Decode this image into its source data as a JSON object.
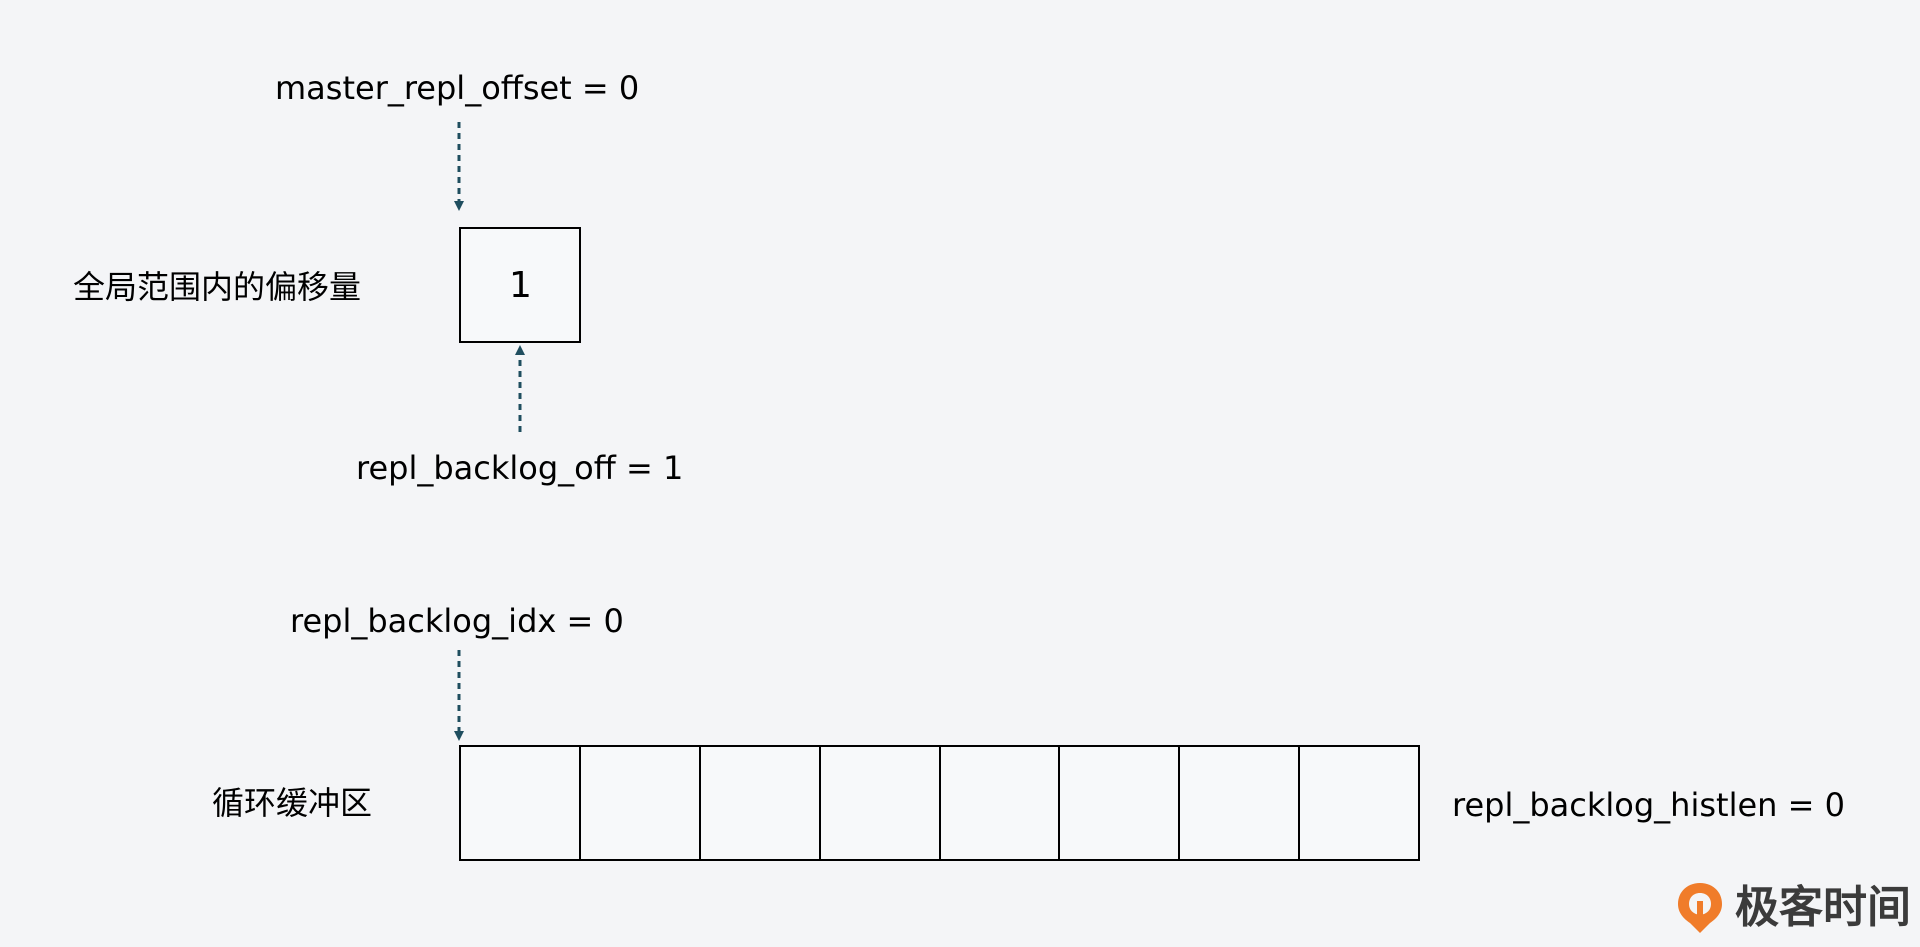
{
  "labels": {
    "master_repl_offset": "master_repl_offset = 0",
    "global_offset": "全局范围内的偏移量",
    "repl_backlog_off": "repl_backlog_off = 1",
    "repl_backlog_idx": "repl_backlog_idx = 0",
    "circular_buffer": "循环缓冲区",
    "repl_backlog_histlen": "repl_backlog_histlen = 0"
  },
  "offset_box": {
    "value": "1"
  },
  "buffer": {
    "cells": [
      "",
      "",
      "",
      "",
      "",
      "",
      "",
      ""
    ]
  },
  "colors": {
    "arrow": "#1f4e5f",
    "logo_accent": "#f07c2a"
  },
  "logo": {
    "text": "极客时间"
  }
}
